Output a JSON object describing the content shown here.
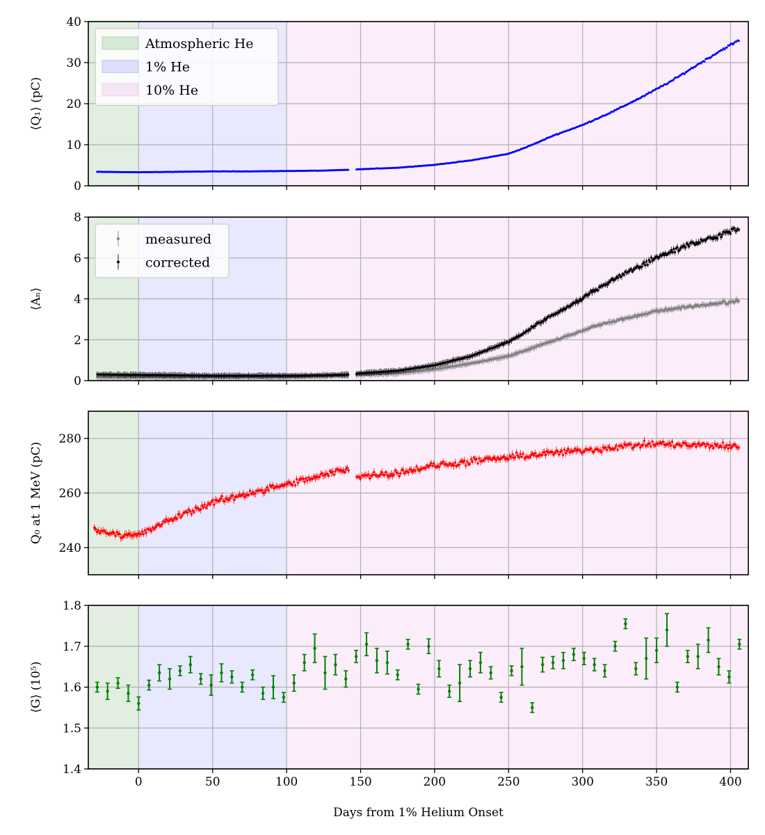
{
  "figure": {
    "xlabel": "Days from 1% Helium Onset",
    "xlim": [
      -34,
      412
    ],
    "xticks": [
      0,
      50,
      100,
      150,
      200,
      250,
      300,
      350,
      400
    ],
    "regions": [
      {
        "name": "Atmospheric He",
        "from": -34,
        "to": 0,
        "color": "#6aaa6a"
      },
      {
        "name": "1% He",
        "from": 0,
        "to": 100,
        "color": "#8a8aff"
      },
      {
        "name": "10% He",
        "from": 100,
        "to": 412,
        "color": "#e9a3e3"
      }
    ]
  },
  "chart_data": [
    {
      "type": "scatter",
      "id": "q1",
      "ylabel": "⟨Q₁⟩ (pC)",
      "ylim": [
        0,
        40
      ],
      "yticks": [
        0,
        10,
        20,
        30,
        40
      ],
      "grid": true,
      "legend": {
        "placement": "top-left",
        "entries": [
          "Atmospheric He",
          "1% He",
          "10% He"
        ]
      },
      "series": [
        {
          "color": "#0000ff",
          "x": [
            -28,
            0,
            25,
            50,
            75,
            100,
            125,
            142,
            148,
            175,
            200,
            225,
            250,
            262,
            270,
            280,
            300,
            320,
            340,
            360,
            380,
            395,
            406
          ],
          "y": [
            3.4,
            3.3,
            3.4,
            3.5,
            3.5,
            3.6,
            3.7,
            3.9,
            4.0,
            4.4,
            5.1,
            6.2,
            7.8,
            9.4,
            10.6,
            12.2,
            14.8,
            18.0,
            21.6,
            25.5,
            30.0,
            33.3,
            35.5
          ]
        }
      ]
    },
    {
      "type": "scatter",
      "id": "an",
      "ylabel": "⟨Aₙ⟩",
      "ylim": [
        0,
        8
      ],
      "yticks": [
        0,
        2,
        4,
        6,
        8
      ],
      "grid": true,
      "legend": {
        "placement": "top-left",
        "entries": [
          "measured",
          "corrected"
        ]
      },
      "series": [
        {
          "name": "measured",
          "color": "#808080",
          "x": [
            -28,
            0,
            50,
            100,
            125,
            142,
            148,
            175,
            200,
            225,
            250,
            262,
            270,
            290,
            310,
            330,
            350,
            370,
            390,
            406
          ],
          "y": [
            0.17,
            0.17,
            0.17,
            0.18,
            0.22,
            0.26,
            0.28,
            0.36,
            0.55,
            0.85,
            1.2,
            1.5,
            1.7,
            2.2,
            2.7,
            3.05,
            3.4,
            3.6,
            3.75,
            3.9
          ]
        },
        {
          "name": "corrected",
          "color": "#000000",
          "x": [
            -28,
            0,
            50,
            100,
            125,
            142,
            148,
            175,
            200,
            225,
            250,
            262,
            270,
            290,
            310,
            330,
            350,
            370,
            390,
            406
          ],
          "y": [
            0.3,
            0.28,
            0.24,
            0.24,
            0.26,
            0.3,
            0.35,
            0.48,
            0.75,
            1.2,
            1.9,
            2.4,
            2.8,
            3.6,
            4.5,
            5.3,
            6.0,
            6.6,
            7.0,
            7.5
          ]
        }
      ]
    },
    {
      "type": "scatter",
      "id": "q0",
      "ylabel": "Q₀ at 1 MeV (pC)",
      "ylim": [
        230,
        290
      ],
      "yticks": [
        240,
        260,
        280
      ],
      "grid": true,
      "series": [
        {
          "color": "#ff0000",
          "x": [
            -30,
            -15,
            0,
            25,
            50,
            75,
            100,
            125,
            142,
            148,
            175,
            200,
            225,
            250,
            275,
            300,
            325,
            350,
            375,
            406
          ],
          "y": [
            246.5,
            245,
            244.5,
            251,
            256.5,
            260,
            263,
            266.5,
            269,
            266,
            267.5,
            270,
            271.5,
            273,
            274.5,
            275.5,
            277,
            278,
            277.5,
            277
          ]
        }
      ]
    },
    {
      "type": "scatter",
      "id": "g",
      "ylabel": "⟨G⟩ (10⁵)",
      "ylim": [
        1.4,
        1.8
      ],
      "yticks": [
        1.4,
        1.5,
        1.6,
        1.7,
        1.8
      ],
      "grid": true,
      "series": [
        {
          "color": "#008000",
          "x": [
            -28,
            -21,
            -14,
            -7,
            0,
            7,
            14,
            21,
            28,
            35,
            42,
            49,
            56,
            63,
            70,
            77,
            84,
            91,
            98,
            105,
            112,
            119,
            126,
            133,
            140,
            147,
            154,
            161,
            168,
            175,
            182,
            189,
            196,
            203,
            210,
            217,
            224,
            231,
            238,
            245,
            252,
            259,
            266,
            273,
            280,
            287,
            294,
            301,
            308,
            315,
            322,
            329,
            336,
            343,
            350,
            357,
            364,
            371,
            378,
            385,
            392,
            399,
            406
          ],
          "y": [
            1.6,
            1.59,
            1.61,
            1.585,
            1.56,
            1.605,
            1.635,
            1.62,
            1.64,
            1.655,
            1.62,
            1.605,
            1.635,
            1.625,
            1.6,
            1.63,
            1.585,
            1.6,
            1.575,
            1.61,
            1.66,
            1.695,
            1.635,
            1.655,
            1.62,
            1.675,
            1.705,
            1.665,
            1.66,
            1.63,
            1.705,
            1.595,
            1.7,
            1.645,
            1.59,
            1.61,
            1.645,
            1.66,
            1.635,
            1.575,
            1.64,
            1.65,
            1.55,
            1.655,
            1.66,
            1.665,
            1.68,
            1.67,
            1.655,
            1.64,
            1.7,
            1.755,
            1.645,
            1.67,
            1.69,
            1.74,
            1.6,
            1.675,
            1.675,
            1.715,
            1.65,
            1.625,
            1.705
          ],
          "err": [
            0.012,
            0.02,
            0.013,
            0.02,
            0.016,
            0.012,
            0.02,
            0.025,
            0.012,
            0.02,
            0.013,
            0.025,
            0.022,
            0.015,
            0.012,
            0.012,
            0.015,
            0.028,
            0.012,
            0.02,
            0.02,
            0.035,
            0.04,
            0.025,
            0.02,
            0.015,
            0.028,
            0.03,
            0.028,
            0.012,
            0.012,
            0.012,
            0.018,
            0.02,
            0.015,
            0.045,
            0.02,
            0.025,
            0.015,
            0.012,
            0.012,
            0.045,
            0.012,
            0.018,
            0.015,
            0.02,
            0.015,
            0.015,
            0.015,
            0.015,
            0.012,
            0.012,
            0.015,
            0.05,
            0.03,
            0.04,
            0.012,
            0.015,
            0.03,
            0.03,
            0.02,
            0.015,
            0.012
          ]
        }
      ]
    }
  ]
}
